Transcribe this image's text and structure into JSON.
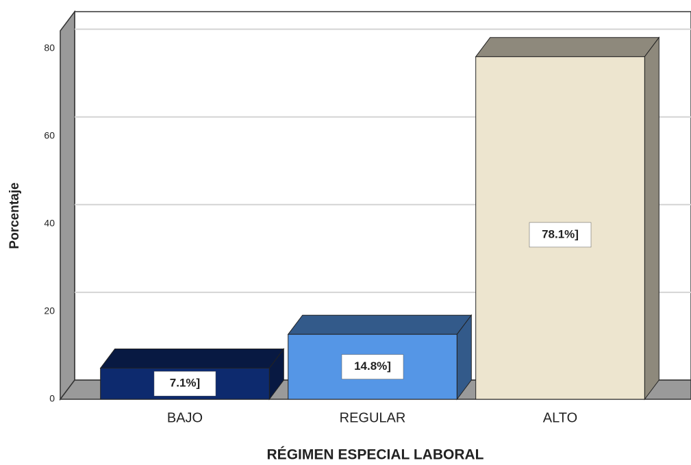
{
  "chart_data": {
    "type": "bar3d",
    "categories": [
      "BAJO",
      "REGULAR",
      "ALTO"
    ],
    "values": [
      7.1,
      14.8,
      78.1
    ],
    "value_labels": [
      "7.1%]",
      "14.8%]",
      "78.1%]"
    ],
    "colors": [
      "#0d2a6e",
      "#5596e6",
      "#ede5cf"
    ],
    "ylim": [
      0,
      84
    ],
    "yticks": [
      0,
      20,
      40,
      60,
      80
    ],
    "grid": true,
    "y_label": "Porcentaje",
    "x_label": "RÉGIMEN ESPECIAL LABORAL"
  }
}
